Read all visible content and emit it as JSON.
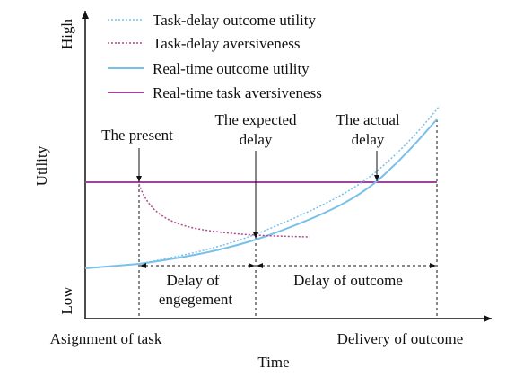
{
  "axes": {
    "y_title": "Utility",
    "y_high": "High",
    "y_low": "Low",
    "x_title": "Time",
    "x_start": "Asignment of task",
    "x_end": "Delivery of outcome"
  },
  "legend": [
    "Task-delay outcome utility",
    "Task-delay aversiveness",
    "Real-time outcome utility",
    "Real-time task aversiveness"
  ],
  "annotations": {
    "present": [
      "The present"
    ],
    "expected": [
      "The expected",
      "delay"
    ],
    "actual": [
      "The actual",
      "delay"
    ],
    "engagement": [
      "Delay of",
      "engegement"
    ],
    "outcome": [
      "Delay of outcome"
    ]
  }
}
